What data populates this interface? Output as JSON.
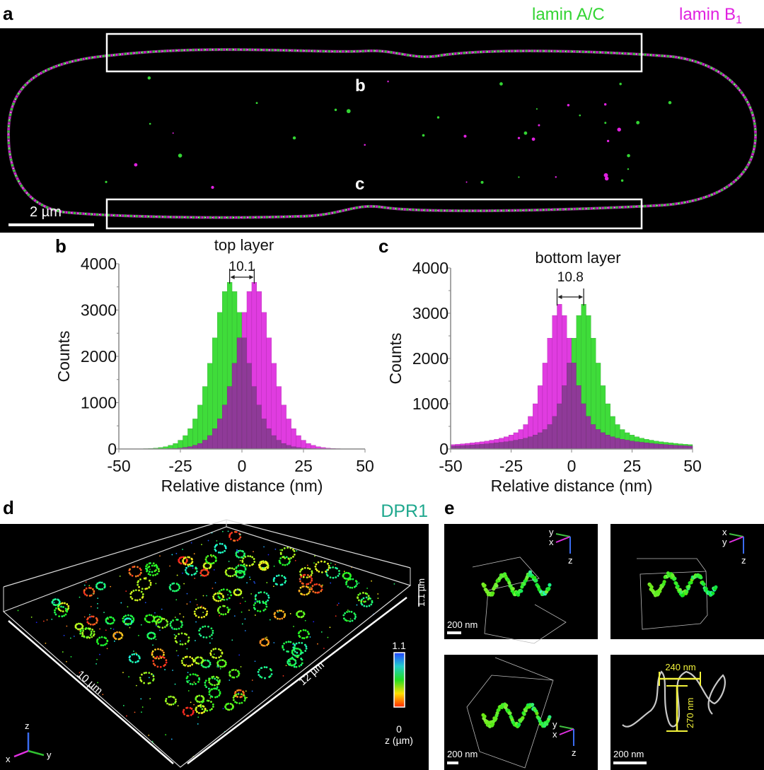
{
  "panel_a": {
    "letter": "a",
    "legend": [
      {
        "text": "lamin A/C",
        "color": "#33d433"
      },
      {
        "text": "lamin B",
        "sub": "1",
        "color": "#e021e0"
      }
    ],
    "box_labels": [
      "b",
      "c"
    ],
    "scale_bar": "2 µm"
  },
  "chart_data": [
    {
      "panel": "b",
      "type": "bar",
      "title": "top layer",
      "xlabel": "Relative distance (nm)",
      "ylabel": "Counts",
      "xlim": [
        -50,
        50
      ],
      "ylim": [
        0,
        4000
      ],
      "xticks": [
        -50,
        -25,
        0,
        25,
        50
      ],
      "yticks": [
        0,
        1000,
        2000,
        3000,
        4000
      ],
      "grid": false,
      "annotation": {
        "text": "10.1",
        "from": -5,
        "to": 5
      },
      "x": [
        -49,
        -47,
        -45,
        -43,
        -41,
        -39,
        -37,
        -35,
        -33,
        -31,
        -29,
        -27,
        -25,
        -23,
        -21,
        -19,
        -17,
        -15,
        -13,
        -11,
        -9,
        -7,
        -5,
        -3,
        -1,
        1,
        3,
        5,
        7,
        9,
        11,
        13,
        15,
        17,
        19,
        21,
        23,
        25,
        27,
        29,
        31,
        33,
        35,
        37,
        39,
        41,
        43,
        45,
        47,
        49
      ],
      "series": [
        {
          "color": "#3fdc3a",
          "values": [
            1,
            1,
            2,
            3,
            5,
            8,
            13,
            20,
            32,
            50,
            80,
            120,
            190,
            290,
            440,
            650,
            950,
            1350,
            1850,
            2400,
            2950,
            3400,
            3600,
            3400,
            2950,
            2400,
            1850,
            1350,
            950,
            650,
            440,
            290,
            190,
            120,
            80,
            50,
            32,
            20,
            13,
            8,
            5,
            3,
            2,
            1,
            1,
            0,
            0,
            0,
            0,
            0
          ]
        },
        {
          "color": "#e03ce0",
          "values": [
            0,
            0,
            0,
            0,
            0,
            1,
            1,
            2,
            3,
            5,
            8,
            13,
            20,
            32,
            50,
            80,
            120,
            190,
            290,
            440,
            650,
            950,
            1350,
            1850,
            2400,
            2950,
            3400,
            3600,
            3400,
            2950,
            2400,
            1850,
            1350,
            950,
            650,
            440,
            290,
            190,
            120,
            80,
            50,
            32,
            20,
            13,
            8,
            5,
            3,
            2,
            1,
            1
          ]
        }
      ],
      "overlap_color": "#8f3a98"
    },
    {
      "panel": "c",
      "type": "bar",
      "title": "bottom layer",
      "xlabel": "Relative distance (nm)",
      "ylabel": "Counts",
      "xlim": [
        -50,
        50
      ],
      "ylim": [
        0,
        4000
      ],
      "xticks": [
        -50,
        -25,
        0,
        25,
        50
      ],
      "yticks": [
        0,
        1000,
        2000,
        3000,
        4000
      ],
      "grid": false,
      "annotation": {
        "text": "10.8",
        "from": -6,
        "to": 5
      },
      "x": [
        -49,
        -47,
        -45,
        -43,
        -41,
        -39,
        -37,
        -35,
        -33,
        -31,
        -29,
        -27,
        -25,
        -23,
        -21,
        -19,
        -17,
        -15,
        -13,
        -11,
        -9,
        -7,
        -5,
        -3,
        -1,
        1,
        3,
        5,
        7,
        9,
        11,
        13,
        15,
        17,
        19,
        21,
        23,
        25,
        27,
        29,
        31,
        33,
        35,
        37,
        39,
        41,
        43,
        45,
        47,
        49
      ],
      "series": [
        {
          "color": "#3fdc3a",
          "values": [
            66,
            71,
            77,
            83,
            90,
            97,
            105,
            115,
            125,
            136,
            148,
            160,
            175,
            195,
            215,
            240,
            270,
            310,
            360,
            430,
            540,
            720,
            1000,
            1400,
            1900,
            2450,
            2950,
            3200,
            2950,
            2450,
            1900,
            1400,
            1000,
            720,
            540,
            430,
            360,
            310,
            270,
            240,
            215,
            195,
            175,
            160,
            148,
            136,
            125,
            115,
            105,
            97
          ]
        },
        {
          "color": "#e03ce0",
          "values": [
            97,
            105,
            115,
            125,
            136,
            148,
            160,
            175,
            195,
            215,
            240,
            270,
            310,
            360,
            430,
            540,
            720,
            1000,
            1400,
            1900,
            2450,
            2950,
            3200,
            2950,
            2450,
            1900,
            1400,
            1000,
            720,
            540,
            430,
            360,
            310,
            270,
            240,
            215,
            195,
            175,
            160,
            148,
            136,
            125,
            115,
            105,
            97,
            90,
            83,
            77,
            71,
            66
          ]
        }
      ],
      "overlap_color": "#8f3a98"
    }
  ],
  "panel_d": {
    "letter": "d",
    "channel": "DPR1",
    "channel_color": "#1fa88e",
    "dim_x": "10 µm",
    "dim_y": "12 µm",
    "dim_z": "1.1 µm",
    "colorbar": {
      "max": "1.1",
      "min": "0",
      "label": "z (µm)"
    },
    "axes": {
      "x": "x",
      "y": "y",
      "z": "z"
    }
  },
  "panel_e": {
    "letter": "e",
    "tiles": [
      {
        "scale_bar": "200 nm",
        "axes": {
          "x": "x",
          "y": "y",
          "z": "z"
        }
      },
      {
        "scale_bar": "",
        "axes": {
          "x": "x",
          "y": "y",
          "z": "z"
        }
      },
      {
        "scale_bar": "200 nm",
        "axes": {
          "x": "x",
          "y": "y",
          "z": "z"
        }
      },
      {
        "scale_bar": "200 nm"
      }
    ],
    "width_label": "240 nm",
    "height_label": "270 nm",
    "measure_color": "#f2f23a"
  }
}
